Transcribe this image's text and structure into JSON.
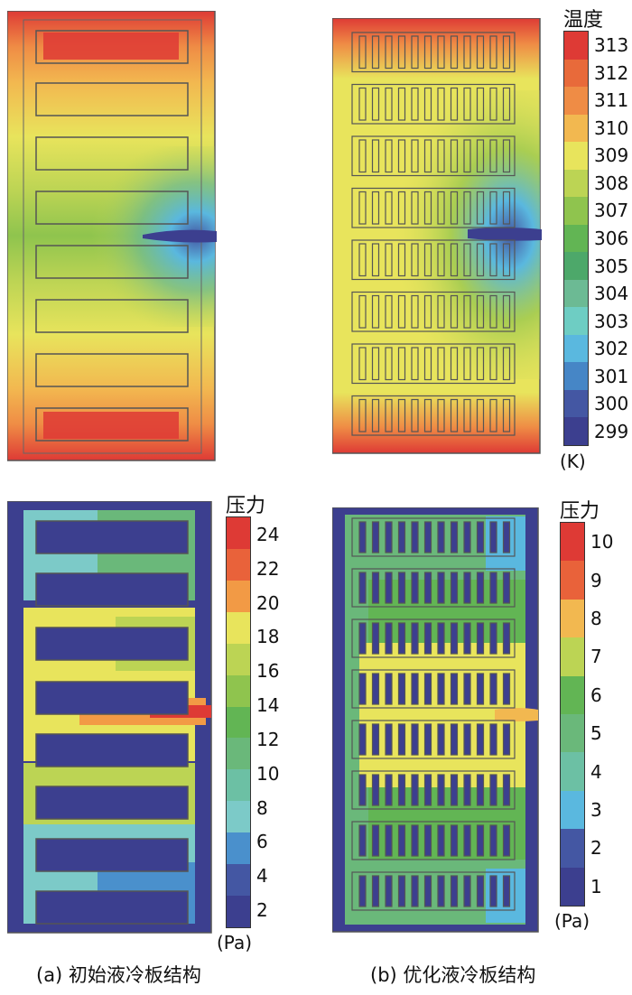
{
  "temperature_legend": {
    "title": "温度",
    "unit": "(K)",
    "ticks": [
      "313",
      "312",
      "311",
      "310",
      "309",
      "308",
      "307",
      "306",
      "305",
      "304",
      "303",
      "302",
      "301",
      "300",
      "299"
    ],
    "colors": [
      "#de3a35",
      "#e86a3a",
      "#ef8c45",
      "#f2b850",
      "#e8e45c",
      "#bcd454",
      "#8fc44e",
      "#62b554",
      "#4da86a",
      "#6cba94",
      "#6ecdc3",
      "#5ab8df",
      "#4686c6",
      "#4457a3",
      "#3c3f8f"
    ]
  },
  "pressure_legend_a": {
    "title": "压力",
    "unit": "(Pa)",
    "ticks": [
      "24",
      "22",
      "20",
      "18",
      "16",
      "14",
      "12",
      "10",
      "8",
      "6",
      "4",
      "2"
    ],
    "colors": [
      "#de3a35",
      "#e9623a",
      "#f29a45",
      "#e8e45c",
      "#bcd454",
      "#8fc44e",
      "#62b554",
      "#6ab87a",
      "#6cc0a4",
      "#7ccac8",
      "#4a90cc",
      "#4457a3",
      "#3c3f8f"
    ]
  },
  "pressure_legend_b": {
    "title": "压力",
    "unit": "(Pa)",
    "ticks": [
      "10",
      "9",
      "8",
      "7",
      "6",
      "5",
      "4",
      "3",
      "2",
      "1"
    ],
    "colors": [
      "#de3a35",
      "#e9623a",
      "#f2b850",
      "#bcd454",
      "#62b554",
      "#6ab87a",
      "#6cc0a4",
      "#5ab8df",
      "#4457a3",
      "#3c3f8f"
    ]
  },
  "captions": {
    "a": "(a) 初始液冷板结构",
    "b": "(b) 优化液冷板结构"
  }
}
